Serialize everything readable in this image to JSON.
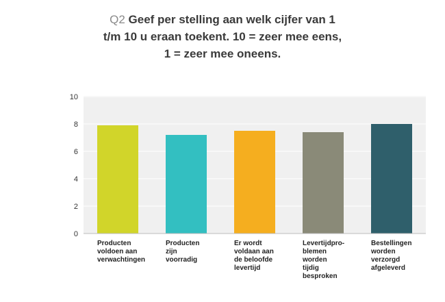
{
  "title": {
    "question_number": "Q2",
    "line1": "Geef per stelling aan welk cijfer van 1",
    "line2": "t/m 10 u eraan toekent. 10 = zeer mee eens,",
    "line3": "1 = zeer mee oneens."
  },
  "chart_data": {
    "type": "bar",
    "categories": [
      "Producten\nvoldoen aan\nverwachtingen",
      "Producten\nzijn\nvoorradig",
      "Er wordt\nvoldaan aan\nde beloofde\nlevertijd",
      "Levertijdpro-\nblemen\nworden\ntijdig\nbesproken",
      "Bestellingen\nworden\nverzorgd\nafgeleverd"
    ],
    "values": [
      7.9,
      7.2,
      7.5,
      7.4,
      8.0
    ],
    "colors": [
      "#d1d52a",
      "#33bfc1",
      "#f5ae1f",
      "#8a8a78",
      "#2f5f6b"
    ],
    "ylim": [
      0,
      10
    ],
    "yticks": [
      "0",
      "2",
      "4",
      "6",
      "8",
      "10"
    ],
    "grid": true
  }
}
